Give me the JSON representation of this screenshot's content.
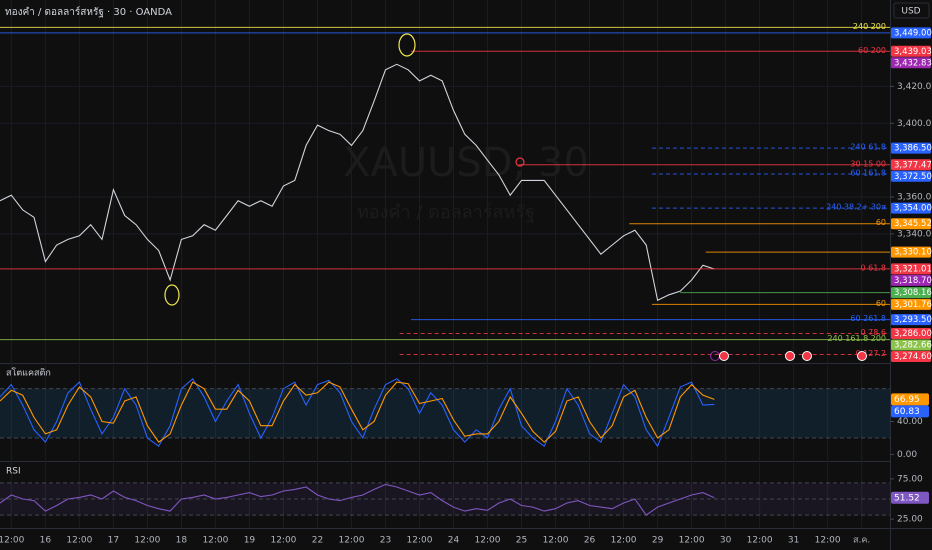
{
  "header": {
    "title": "ทองคำ / ดอลลาร์สหรัฐ · 30 · OANDA",
    "currency": "USD"
  },
  "watermark": {
    "symbol": "XAUUSD, 30",
    "name": "ทองคำ / ดอลลาร์สหรัฐ"
  },
  "chart_data": [
    {
      "type": "line",
      "x": [
        -4,
        0,
        4,
        8,
        12,
        16,
        20,
        24,
        28,
        32,
        36,
        40,
        44,
        48,
        52,
        56,
        60,
        64,
        68,
        72,
        76,
        80,
        84,
        88,
        92,
        96,
        100,
        104,
        108,
        112,
        116,
        120,
        124,
        128,
        132,
        136,
        140,
        144,
        148,
        152,
        156,
        160,
        164,
        168,
        172,
        176,
        180,
        184,
        188,
        192,
        196,
        200,
        204,
        208,
        212,
        216,
        220,
        224,
        228,
        232,
        236,
        240,
        244,
        248
      ],
      "series": [
        {
          "color": "#d1d4dc",
          "values": [
            3358,
            3361,
            3353,
            3349,
            3325,
            3334,
            3337,
            3339,
            3345,
            3337,
            3364,
            3350,
            3345,
            3337,
            3331,
            3315,
            3337,
            3339,
            3345,
            3342,
            3350,
            3358,
            3355,
            3358,
            3355,
            3366,
            3369,
            3388,
            3399,
            3396,
            3394,
            3388,
            3396,
            3412,
            3429,
            3432,
            3429,
            3423,
            3426,
            3423,
            3407,
            3394,
            3388,
            3380,
            3372,
            3361,
            3369,
            3369,
            3369,
            3361,
            3353,
            3345,
            3337,
            3329,
            3334,
            3339,
            3342,
            3334,
            3304,
            3307,
            3309,
            3315,
            3323,
            3321
          ]
        }
      ],
      "xlim": [
        -4,
        310
      ],
      "xticks": [
        {
          "value": 0,
          "label": "12:00"
        },
        {
          "value": 12,
          "label": "16"
        },
        {
          "value": 24,
          "label": "12:00"
        },
        {
          "value": 36,
          "label": "17"
        },
        {
          "value": 48,
          "label": "12:00"
        },
        {
          "value": 60,
          "label": "18"
        },
        {
          "value": 72,
          "label": "12:00"
        },
        {
          "value": 84,
          "label": "19"
        },
        {
          "value": 96,
          "label": "12:00"
        },
        {
          "value": 108,
          "label": "22"
        },
        {
          "value": 120,
          "label": "12:00"
        },
        {
          "value": 132,
          "label": "23"
        },
        {
          "value": 144,
          "label": "12:00"
        },
        {
          "value": 156,
          "label": "24"
        },
        {
          "value": 168,
          "label": "12:00"
        },
        {
          "value": 180,
          "label": "25"
        },
        {
          "value": 192,
          "label": "12:00"
        },
        {
          "value": 204,
          "label": "26"
        },
        {
          "value": 216,
          "label": "12:00"
        },
        {
          "value": 228,
          "label": "29"
        },
        {
          "value": 240,
          "label": "12:00"
        },
        {
          "value": 252,
          "label": "30"
        },
        {
          "value": 264,
          "label": "12:00"
        },
        {
          "value": 276,
          "label": "31"
        },
        {
          "value": 288,
          "label": "12:00"
        },
        {
          "value": 300,
          "label": "ส.ค."
        }
      ],
      "ylim": [
        3270,
        3456
      ],
      "yticks": [
        {
          "value": 3420,
          "label": "3,420.000"
        },
        {
          "value": 3400,
          "label": "3,400.000"
        },
        {
          "value": 3360,
          "label": "3,360.000"
        },
        {
          "value": 3340,
          "label": "3,340.000"
        }
      ],
      "grid": true,
      "levels": [
        {
          "name": "240 200",
          "value": 3452,
          "color": "#f2e94e",
          "x0": -4
        },
        {
          "value": 3449,
          "value_label": "3,449.000",
          "color": "#2962ff",
          "x0": -4
        },
        {
          "name": "60 200",
          "value": 3439.035,
          "value_label": "3,439.035",
          "color": "#f23645",
          "x0": 141
        },
        {
          "value": 3432.835,
          "value_label": "3,432.835",
          "color": "#9c27b0"
        },
        {
          "name": "240 61.8",
          "value": 3386.5,
          "value_label": "3,386.500",
          "color": "#2962ff",
          "x0": 226,
          "dashed": true
        },
        {
          "name": "30 15 00",
          "value": 3377.475,
          "value_label": "3,377.475",
          "color": "#f23645",
          "x0": 179
        },
        {
          "name": "60 161.8",
          "value": 3372.5,
          "value_label": "3,372.500",
          "color": "#2962ff",
          "x0": 226,
          "dashed": true
        },
        {
          "name": "240 38.2+ 30ส",
          "value": 3354,
          "value_label": "3,354.000",
          "color": "#2962ff",
          "x0": 226,
          "dashed": true
        },
        {
          "name": "60",
          "value": 3345.52,
          "value_label": "3,345.520",
          "color": "#ff9800",
          "x0": 218
        },
        {
          "value": 3330.1,
          "value_label": "3,330.100",
          "color": "#ff9800",
          "x0": 245
        },
        {
          "name": "0 61.8",
          "value": 3321.01,
          "value_label": "3,321.010",
          "color": "#f23645",
          "x0": -4
        },
        {
          "value": 3318.7,
          "value_label": "3,318.700",
          "color": "#9c27b0"
        },
        {
          "value": 3308.16,
          "value_label": "3,308.160",
          "color": "#4caf50",
          "x0": 236
        },
        {
          "name": "60",
          "value": 3301.765,
          "value_label": "3,301.765",
          "color": "#ff9800",
          "x0": 226
        },
        {
          "name": "60 261.8",
          "value": 3293.5,
          "value_label": "3,293.500",
          "color": "#2962ff",
          "x0": 141
        },
        {
          "name": "0 78.6",
          "value": 3286,
          "value_label": "3,286.000",
          "color": "#f23645",
          "x0": 137,
          "dashed": true
        },
        {
          "name": "240 161.8 200",
          "value": 3282.665,
          "value_label": "3,282.665",
          "color": "#8bc34a",
          "x0": -4
        },
        {
          "name": "0 127.2",
          "value": 3274.6,
          "value_label": "3,274.600",
          "color": "#f23645",
          "x0": 137,
          "dashed": true
        }
      ]
    },
    {
      "type": "line",
      "title": "สโตแคสติก",
      "x": [
        -4,
        0,
        4,
        8,
        12,
        16,
        20,
        24,
        28,
        32,
        36,
        40,
        44,
        48,
        52,
        56,
        60,
        64,
        68,
        72,
        76,
        80,
        84,
        88,
        92,
        96,
        100,
        104,
        108,
        112,
        116,
        120,
        124,
        128,
        132,
        136,
        140,
        144,
        148,
        152,
        156,
        160,
        164,
        168,
        172,
        176,
        180,
        184,
        188,
        192,
        196,
        200,
        204,
        208,
        212,
        216,
        220,
        224,
        228,
        232,
        236,
        240,
        244,
        248
      ],
      "series": [
        {
          "color": "#2962ff",
          "values": [
            70,
            85,
            60,
            30,
            15,
            40,
            75,
            88,
            55,
            25,
            45,
            80,
            60,
            20,
            10,
            35,
            80,
            92,
            70,
            40,
            65,
            85,
            50,
            20,
            45,
            80,
            88,
            60,
            85,
            90,
            75,
            40,
            20,
            55,
            85,
            92,
            80,
            50,
            75,
            60,
            30,
            15,
            30,
            20,
            55,
            80,
            35,
            20,
            10,
            40,
            80,
            60,
            25,
            15,
            50,
            85,
            70,
            30,
            10,
            45,
            82,
            88,
            60,
            60.83
          ]
        },
        {
          "color": "#ff9800",
          "values": [
            65,
            78,
            72,
            45,
            25,
            30,
            60,
            82,
            70,
            40,
            38,
            65,
            70,
            35,
            15,
            25,
            60,
            88,
            80,
            55,
            55,
            78,
            65,
            35,
            35,
            65,
            85,
            72,
            75,
            88,
            82,
            55,
            30,
            40,
            72,
            88,
            86,
            62,
            65,
            68,
            42,
            22,
            25,
            25,
            40,
            70,
            50,
            28,
            15,
            28,
            65,
            70,
            40,
            20,
            35,
            70,
            78,
            45,
            20,
            30,
            70,
            85,
            72,
            66.95
          ]
        }
      ],
      "xlim": [
        -4,
        310
      ],
      "ylim": [
        -8,
        110
      ],
      "yticks": [
        {
          "value": 40,
          "label": "40.00"
        },
        {
          "value": 0,
          "label": "0.00"
        }
      ],
      "bands": [
        80,
        20
      ],
      "band_fill": "rgba(33,150,243,0.12)",
      "last_value_box": true
    },
    {
      "type": "line",
      "title": "RSI",
      "x": [
        -4,
        0,
        4,
        8,
        12,
        16,
        20,
        24,
        28,
        32,
        36,
        40,
        44,
        48,
        52,
        56,
        60,
        64,
        68,
        72,
        76,
        80,
        84,
        88,
        92,
        96,
        100,
        104,
        108,
        112,
        116,
        120,
        124,
        128,
        132,
        136,
        140,
        144,
        148,
        152,
        156,
        160,
        164,
        168,
        172,
        176,
        180,
        184,
        188,
        192,
        196,
        200,
        204,
        208,
        212,
        216,
        220,
        224,
        228,
        232,
        236,
        240,
        244,
        248
      ],
      "series": [
        {
          "color": "#7e57c2",
          "values": [
            45,
            55,
            50,
            48,
            35,
            42,
            50,
            52,
            55,
            50,
            60,
            52,
            48,
            42,
            38,
            35,
            50,
            52,
            55,
            50,
            52,
            55,
            58,
            53,
            55,
            60,
            62,
            65,
            55,
            50,
            48,
            52,
            55,
            62,
            68,
            65,
            60,
            55,
            58,
            48,
            40,
            35,
            38,
            36,
            45,
            50,
            42,
            40,
            35,
            38,
            45,
            48,
            42,
            40,
            38,
            45,
            50,
            30,
            40,
            45,
            50,
            55,
            58,
            51.52
          ]
        }
      ],
      "xlim": [
        -4,
        310
      ],
      "ylim": [
        14,
        96
      ],
      "yticks": [
        {
          "value": 75,
          "label": "75.00"
        },
        {
          "value": 25,
          "label": "25.00"
        }
      ],
      "bands": [
        70,
        50,
        30
      ],
      "band_fill": "rgba(126,87,194,0.10)",
      "last_value_box": true
    }
  ]
}
